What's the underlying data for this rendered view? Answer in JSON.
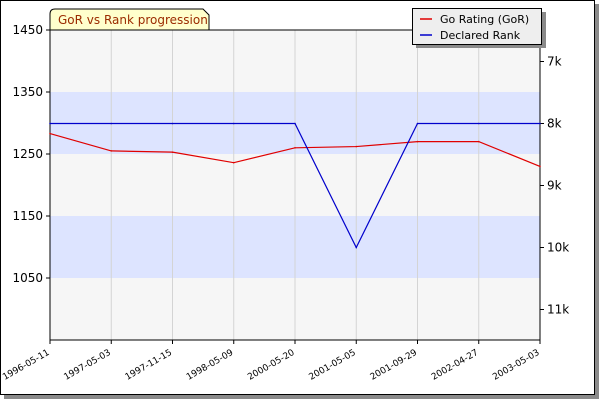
{
  "chart_data": {
    "type": "line",
    "title": "GoR vs Rank progression",
    "categories": [
      "1996-05-11",
      "1997-05-03",
      "1997-11-15",
      "1998-05-09",
      "2000-05-20",
      "2001-05-05",
      "2001-09-29",
      "2002-04-27",
      "2003-05-03"
    ],
    "series": [
      {
        "name": "Go Rating (GoR)",
        "axis": "left",
        "color": "#e00000",
        "values": [
          1283,
          1255,
          1253,
          1236,
          1260,
          1262,
          1270,
          1270,
          1230
        ]
      },
      {
        "name": "Declared Rank",
        "axis": "right",
        "color": "#0000cc",
        "values": [
          "8k",
          "8k",
          "8k",
          "8k",
          "8k",
          "10k",
          "8k",
          "8k",
          "8k"
        ]
      }
    ],
    "left_axis": {
      "ylim": [
        950,
        1450
      ],
      "ticks": [
        1450,
        1350,
        1250,
        1150,
        1050
      ]
    },
    "right_axis": {
      "ticks": [
        "7k",
        "8k",
        "9k",
        "10k",
        "11k"
      ]
    },
    "grid": true,
    "legend_position": "top-right",
    "colors": {
      "band": "#dde4ff",
      "plot_background": "#f6f6f6",
      "grid": "#d4d4d4",
      "title_box": "#ffffcc",
      "title_text": "#9b2b00"
    }
  }
}
